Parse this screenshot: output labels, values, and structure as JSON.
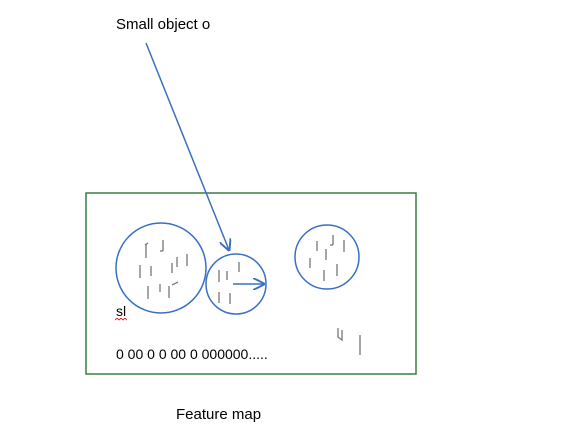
{
  "texts": {
    "small_object": "Small object o",
    "feature_map": "Feature map",
    "zeros": "0 00 0 0 00 0 000000.....",
    "sl": "sl"
  },
  "colors": {
    "circle_stroke": "#3a6fc4",
    "arrow_stroke": "#3a6fc4",
    "box_stroke": "#3a7d44",
    "tick_stroke": "#808080",
    "squiggle": "#e02020"
  }
}
